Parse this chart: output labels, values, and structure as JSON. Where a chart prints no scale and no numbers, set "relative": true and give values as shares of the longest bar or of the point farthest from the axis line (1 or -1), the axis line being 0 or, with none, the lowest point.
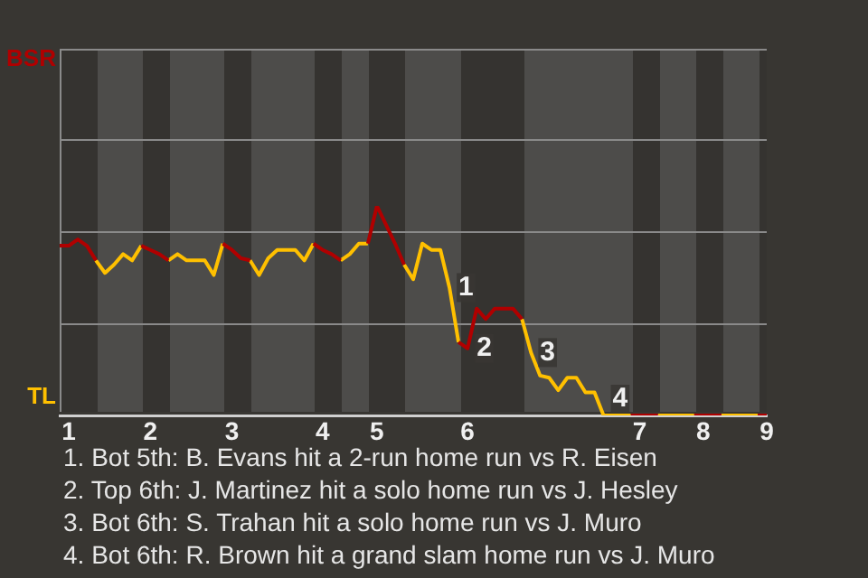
{
  "chart_data": {
    "type": "line",
    "relative": true,
    "categories": [
      null,
      "1",
      null,
      null,
      null,
      null,
      null,
      null,
      null,
      null,
      "2",
      null,
      null,
      null,
      null,
      null,
      null,
      null,
      null,
      "3",
      null,
      null,
      null,
      null,
      null,
      null,
      null,
      null,
      null,
      "4",
      null,
      null,
      null,
      null,
      null,
      "5",
      null,
      null,
      null,
      null,
      null,
      null,
      null,
      null,
      null,
      "6",
      null,
      null,
      null,
      null,
      null,
      null,
      null,
      null,
      null,
      null,
      null,
      null,
      null,
      null,
      null,
      null,
      null,
      null,
      "7",
      null,
      null,
      null,
      null,
      null,
      null,
      "8",
      null,
      null,
      null,
      null,
      null,
      null,
      "9"
    ],
    "marker": "none",
    "ref_lines": [
      {
        "axis": "y",
        "value": 0.44,
        "color": "#8a8a8a"
      },
      {
        "axis": "y",
        "value": 0.88,
        "color": "#8a8a8a"
      },
      {
        "axis": "y",
        "value": 1.32,
        "color": "#8a8a8a"
      },
      {
        "axis": "y",
        "value": 1.75,
        "color": "#8a8a8a"
      }
    ],
    "series": [
      {
        "color": "#b00000",
        "values": [
          0.81,
          0.81,
          0.84,
          0.81,
          0.74,
          null,
          null,
          null,
          null,
          0.81,
          0.79,
          0.77,
          0.74,
          null,
          null,
          null,
          null,
          null,
          0.82,
          0.79,
          0.75,
          0.74,
          null,
          null,
          null,
          null,
          null,
          null,
          0.82,
          0.79,
          0.77,
          0.74,
          null,
          null,
          0.82,
          1,
          0.91,
          0.82,
          0.72,
          null,
          null,
          null,
          null,
          null,
          0.35,
          0.32,
          0.51,
          0.46,
          0.51,
          0.51,
          0.51,
          0.46,
          null,
          null,
          null,
          null,
          null,
          null,
          null,
          null,
          null,
          null,
          null,
          0,
          0,
          0,
          0,
          null,
          null,
          null,
          0,
          0,
          0,
          0,
          null,
          null,
          null,
          0,
          0
        ]
      },
      {
        "color": "#ffc000",
        "values": [
          null,
          null,
          null,
          null,
          0.74,
          0.68,
          0.72,
          0.77,
          0.74,
          0.81,
          null,
          null,
          0.74,
          0.77,
          0.74,
          0.74,
          0.74,
          0.67,
          0.82,
          null,
          null,
          0.74,
          0.67,
          0.75,
          0.79,
          0.79,
          0.79,
          0.74,
          0.82,
          null,
          null,
          0.74,
          0.77,
          0.82,
          0.82,
          null,
          null,
          null,
          0.72,
          0.65,
          0.82,
          0.79,
          0.79,
          0.61,
          0.35,
          null,
          null,
          null,
          null,
          null,
          null,
          0.46,
          0.3,
          0.19,
          0.18,
          0.12,
          0.18,
          0.18,
          0.11,
          0.11,
          0,
          0,
          0,
          0,
          null,
          null,
          0,
          0,
          0,
          0,
          0,
          null,
          null,
          0,
          0,
          0,
          0,
          0,
          null
        ]
      }
    ],
    "annotations": [
      {
        "text": "BSR"
      },
      {
        "text": "TL"
      },
      {
        "text": "1",
        "y": 0.61
      },
      {
        "text": "2",
        "y": 0.32
      },
      {
        "text": "3",
        "y": 0.3
      },
      {
        "text": "4",
        "y": 0
      },
      "1. Bot 5th: B. Evans hit a 2-run home run vs R. Eisen",
      "2. Top 6th: J. Martinez hit a solo home run vs J. Hesley",
      "3. Bot 6th: S. Trahan hit a solo home run vs J. Muro",
      "4. Bot 6th: R. Brown hit a grand slam home run vs J. Muro"
    ]
  }
}
